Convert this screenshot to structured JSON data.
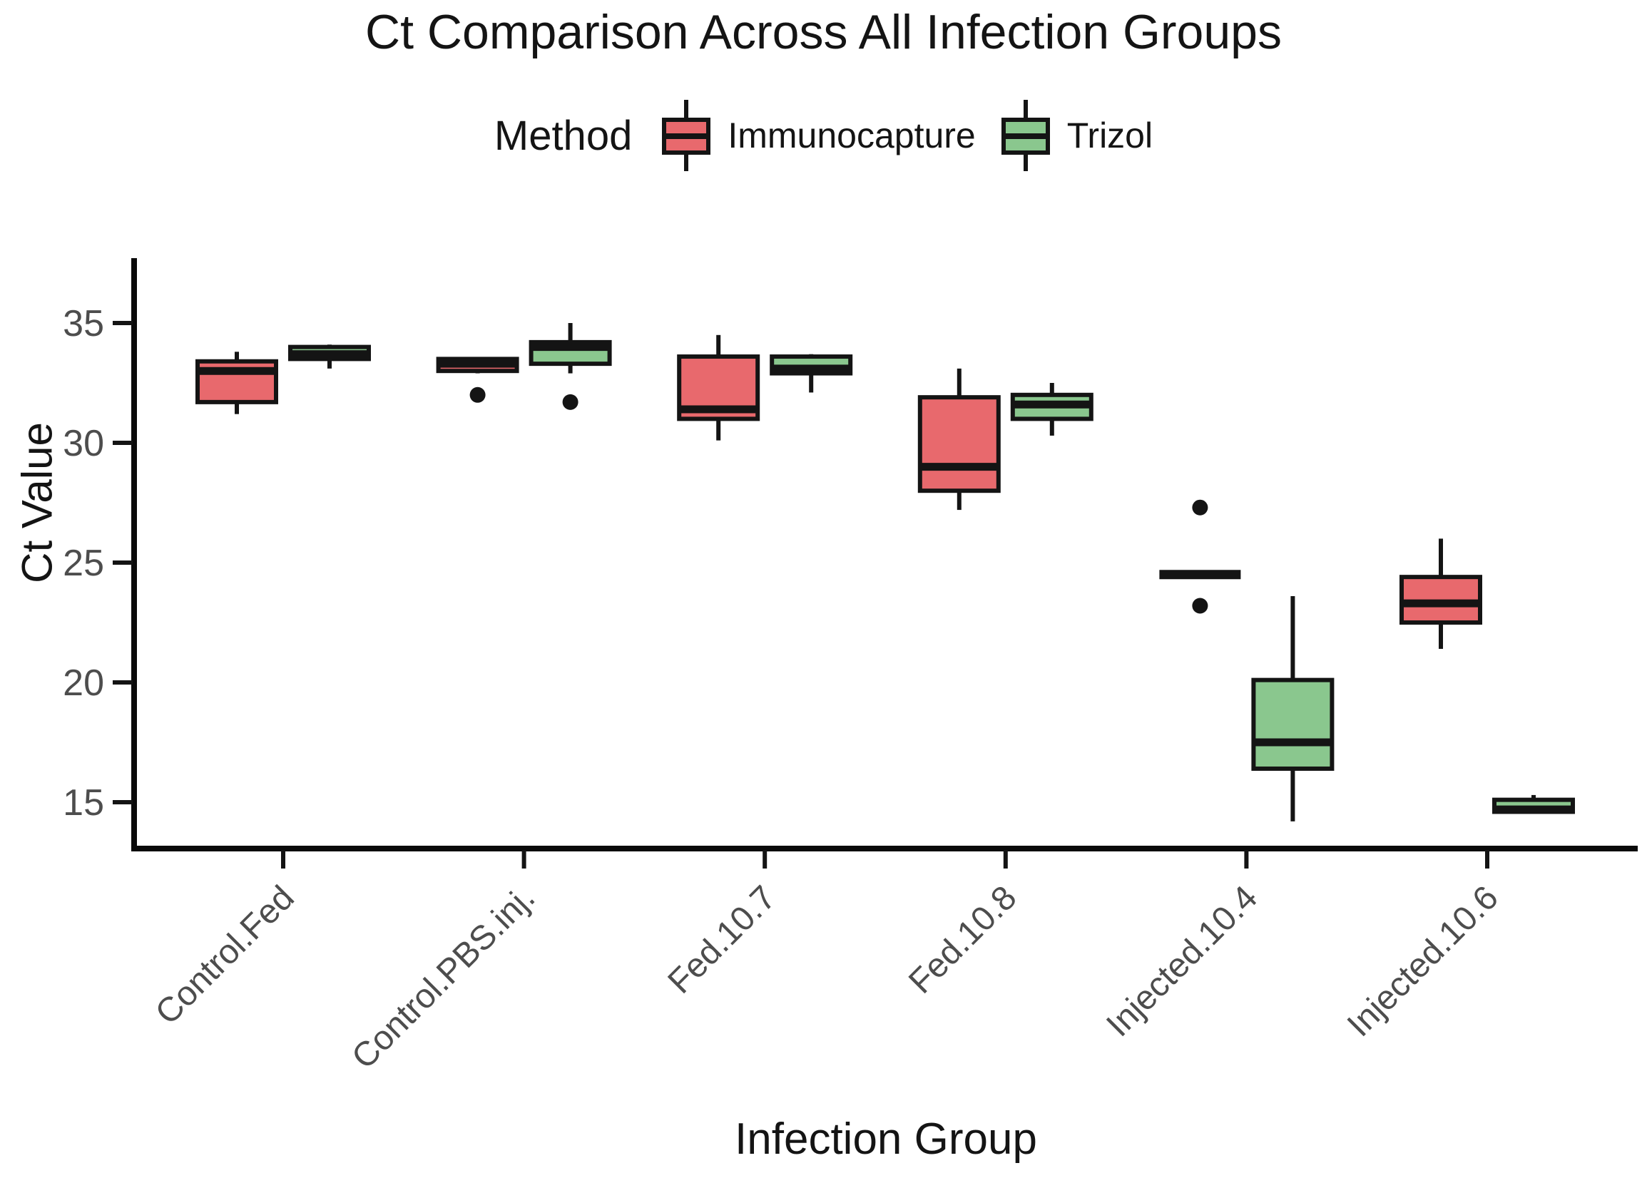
{
  "chart_data": {
    "type": "boxplot",
    "title": "Ct Comparison Across All Infection Groups",
    "xlabel": "Infection Group",
    "ylabel": "Ct Value",
    "legend_title": "Method",
    "legend_position": "top",
    "grid": false,
    "y_ticks": [
      35,
      30,
      25,
      20,
      15
    ],
    "ylim": [
      13.1,
      37.6
    ],
    "categories": [
      "Control.Fed",
      "Control.PBS.inj.",
      "Fed.10.7",
      "Fed.10.8",
      "Injected.10.4",
      "Injected.10.6"
    ],
    "series": [
      {
        "name": "Immunocapture",
        "color": "#E8696D",
        "stats": [
          {
            "min": 31.2,
            "q1": 31.7,
            "med": 33.0,
            "q3": 33.4,
            "max": 33.8,
            "outliers": []
          },
          {
            "min": 32.9,
            "q1": 33.0,
            "med": 33.3,
            "q3": 33.5,
            "max": 33.5,
            "outliers": [
              32.0
            ]
          },
          {
            "min": 30.1,
            "q1": 31.0,
            "med": 31.4,
            "q3": 33.6,
            "max": 34.5,
            "outliers": []
          },
          {
            "min": 27.2,
            "q1": 28.0,
            "med": 29.0,
            "q3": 31.9,
            "max": 33.1,
            "outliers": []
          },
          {
            "min": 24.5,
            "q1": 24.5,
            "med": 24.5,
            "q3": 24.5,
            "max": 24.5,
            "outliers": [
              27.3,
              23.2
            ]
          },
          {
            "min": 21.4,
            "q1": 22.5,
            "med": 23.3,
            "q3": 24.4,
            "max": 26.0,
            "outliers": []
          }
        ]
      },
      {
        "name": "Trizol",
        "color": "#8AC78E",
        "stats": [
          {
            "min": 33.1,
            "q1": 33.5,
            "med": 33.7,
            "q3": 34.0,
            "max": 34.1,
            "outliers": []
          },
          {
            "min": 32.9,
            "q1": 33.3,
            "med": 34.0,
            "q3": 34.2,
            "max": 35.0,
            "outliers": [
              31.7
            ]
          },
          {
            "min": 32.1,
            "q1": 32.9,
            "med": 33.1,
            "q3": 33.6,
            "max": 33.7,
            "outliers": []
          },
          {
            "min": 30.3,
            "q1": 31.0,
            "med": 31.6,
            "q3": 32.0,
            "max": 32.5,
            "outliers": []
          },
          {
            "min": 14.2,
            "q1": 16.4,
            "med": 17.5,
            "q3": 20.1,
            "max": 23.6,
            "outliers": []
          },
          {
            "min": 14.6,
            "q1": 14.6,
            "med": 14.7,
            "q3": 15.1,
            "max": 15.3,
            "outliers": []
          }
        ]
      }
    ],
    "colors": {
      "box_stroke": "#141414",
      "axis_line": "#0A0A0A",
      "tick_label": "#4D4D4D",
      "outlier": "#141414"
    }
  }
}
